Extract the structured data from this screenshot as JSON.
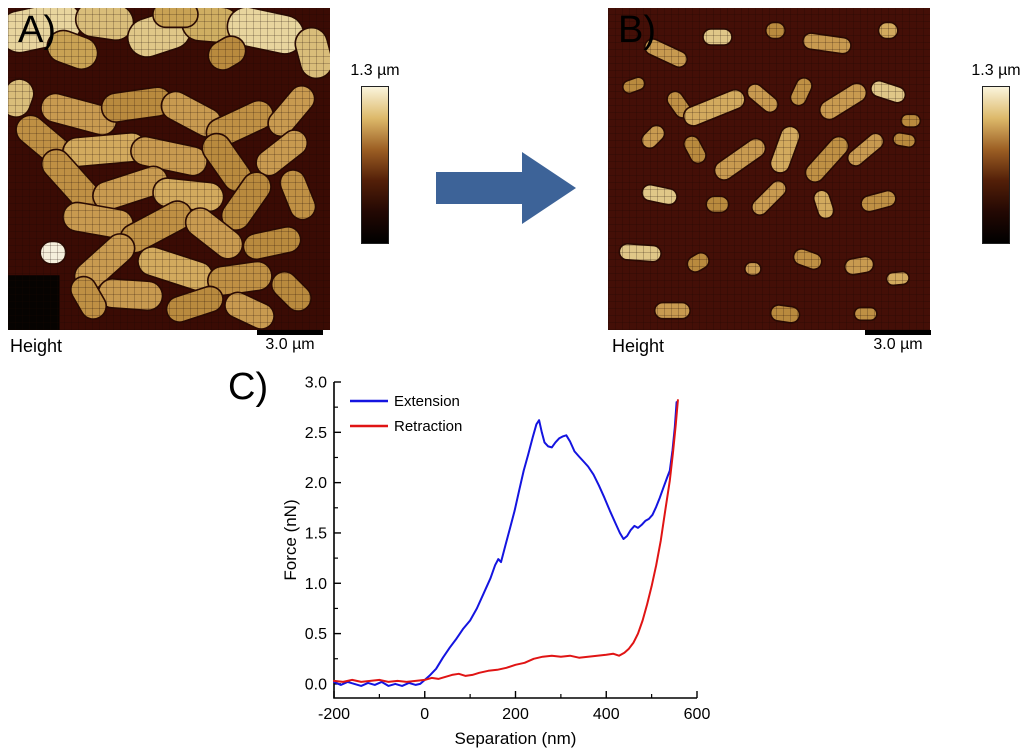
{
  "panels": {
    "a": {
      "label": "A)",
      "channel": "Height",
      "scalebar": "3.0 µm",
      "colorbar_label": "1.3 µm"
    },
    "b": {
      "label": "B)",
      "channel": "Height",
      "scalebar": "3.0 µm",
      "colorbar_label": "1.3 µm"
    },
    "c": {
      "label": "C)"
    }
  },
  "colors": {
    "arrow": "#3d6398",
    "colorbar_stops": [
      "#faf4dc",
      "#ddb96a",
      "#9c5f24",
      "#531f08",
      "#230803",
      "#000000"
    ]
  },
  "afm_a": {
    "background": "#3a0b04",
    "patches": [
      [
        0,
        83,
        16,
        17,
        "#060301"
      ]
    ],
    "cells": [
      [
        10,
        6,
        26,
        13,
        -12,
        "#e8d59e"
      ],
      [
        30,
        4,
        18,
        11,
        8,
        "#d9bd7a"
      ],
      [
        47,
        8,
        20,
        12,
        -18,
        "#e0c788"
      ],
      [
        63,
        5,
        18,
        11,
        5,
        "#cfae62"
      ],
      [
        80,
        7,
        24,
        12,
        12,
        "#e8d59e"
      ],
      [
        95,
        14,
        16,
        10,
        75,
        "#d9bd7a"
      ],
      [
        20,
        13,
        16,
        10,
        20,
        "#c9a254"
      ],
      [
        52,
        2,
        14,
        8,
        0,
        "#c9a254"
      ],
      [
        68,
        14,
        12,
        9,
        -30,
        "#b98a3e"
      ],
      [
        3,
        28,
        12,
        9,
        -70,
        "#d9bd7a"
      ],
      [
        22,
        33,
        24,
        9,
        15,
        "#c89a50"
      ],
      [
        40,
        30,
        22,
        9,
        -8,
        "#b98a3e"
      ],
      [
        57,
        33,
        20,
        9,
        28,
        "#c89a50"
      ],
      [
        72,
        36,
        22,
        9,
        -25,
        "#bf9044"
      ],
      [
        88,
        32,
        18,
        8,
        -50,
        "#c89a50"
      ],
      [
        12,
        42,
        22,
        9,
        40,
        "#bf9044"
      ],
      [
        30,
        44,
        26,
        9,
        -5,
        "#d2aa5e"
      ],
      [
        50,
        46,
        24,
        9,
        12,
        "#c89a50"
      ],
      [
        68,
        48,
        20,
        9,
        55,
        "#b98a3e"
      ],
      [
        85,
        45,
        18,
        8,
        -38,
        "#c89a50"
      ],
      [
        20,
        54,
        24,
        9,
        48,
        "#bf9044"
      ],
      [
        38,
        56,
        24,
        9,
        -18,
        "#c89a50"
      ],
      [
        56,
        58,
        22,
        9,
        6,
        "#d2aa5e"
      ],
      [
        74,
        60,
        20,
        9,
        -55,
        "#b98a3e"
      ],
      [
        90,
        58,
        16,
        8,
        68,
        "#bf9044"
      ],
      [
        28,
        66,
        22,
        9,
        10,
        "#c89a50"
      ],
      [
        46,
        68,
        24,
        9,
        -28,
        "#bf9044"
      ],
      [
        64,
        70,
        20,
        9,
        38,
        "#c89a50"
      ],
      [
        82,
        73,
        18,
        8,
        -12,
        "#b98a3e"
      ],
      [
        14,
        76,
        8,
        7,
        0,
        "#f5efdc"
      ],
      [
        30,
        79,
        22,
        9,
        -42,
        "#c89a50"
      ],
      [
        52,
        81,
        24,
        9,
        18,
        "#d2aa5e"
      ],
      [
        72,
        84,
        20,
        9,
        -8,
        "#bf9044"
      ],
      [
        88,
        88,
        14,
        8,
        45,
        "#b98a3e"
      ],
      [
        38,
        89,
        20,
        9,
        4,
        "#c89a50"
      ],
      [
        58,
        92,
        18,
        8,
        -18,
        "#b98a3e"
      ],
      [
        75,
        94,
        16,
        8,
        25,
        "#c89a50"
      ],
      [
        25,
        90,
        14,
        8,
        60,
        "#bf9044"
      ]
    ]
  },
  "afm_b": {
    "background": "#440f07",
    "patches": [],
    "cells": [
      [
        18,
        14,
        14,
        5,
        25,
        "#c89a50"
      ],
      [
        34,
        9,
        9,
        5,
        0,
        "#e0c788"
      ],
      [
        52,
        7,
        6,
        5,
        0,
        "#b98a3e"
      ],
      [
        68,
        11,
        15,
        5,
        8,
        "#c89a50"
      ],
      [
        87,
        7,
        6,
        5,
        0,
        "#d2aa5e"
      ],
      [
        8,
        24,
        7,
        4,
        -20,
        "#b98a3e"
      ],
      [
        22,
        30,
        9,
        5,
        55,
        "#bf9044"
      ],
      [
        33,
        31,
        20,
        6,
        -22,
        "#d2aa5e"
      ],
      [
        48,
        28,
        11,
        5,
        40,
        "#c89a50"
      ],
      [
        60,
        26,
        9,
        5,
        -65,
        "#bf9044"
      ],
      [
        73,
        29,
        16,
        6,
        -32,
        "#c89a50"
      ],
      [
        87,
        26,
        11,
        5,
        18,
        "#e0c788"
      ],
      [
        94,
        35,
        6,
        4,
        0,
        "#b98a3e"
      ],
      [
        14,
        40,
        8,
        5,
        -45,
        "#c89a50"
      ],
      [
        27,
        44,
        9,
        5,
        62,
        "#b98a3e"
      ],
      [
        41,
        47,
        18,
        6,
        -35,
        "#c89a50"
      ],
      [
        55,
        44,
        15,
        6,
        -70,
        "#d2aa5e"
      ],
      [
        68,
        47,
        17,
        6,
        -48,
        "#bf9044"
      ],
      [
        80,
        44,
        13,
        5,
        -40,
        "#c89a50"
      ],
      [
        92,
        41,
        7,
        4,
        10,
        "#b98a3e"
      ],
      [
        16,
        58,
        11,
        5,
        12,
        "#e0c788"
      ],
      [
        34,
        61,
        7,
        5,
        0,
        "#b98a3e"
      ],
      [
        50,
        59,
        13,
        5,
        -45,
        "#c89a50"
      ],
      [
        67,
        61,
        9,
        5,
        72,
        "#d2aa5e"
      ],
      [
        84,
        60,
        11,
        5,
        -15,
        "#bf9044"
      ],
      [
        10,
        76,
        13,
        5,
        4,
        "#e0c788"
      ],
      [
        28,
        79,
        7,
        5,
        -30,
        "#b98a3e"
      ],
      [
        45,
        81,
        5,
        4,
        0,
        "#c89a50"
      ],
      [
        62,
        78,
        9,
        5,
        20,
        "#bf9044"
      ],
      [
        78,
        80,
        9,
        5,
        -10,
        "#c89a50"
      ],
      [
        90,
        84,
        7,
        4,
        -5,
        "#d2aa5e"
      ],
      [
        20,
        94,
        11,
        5,
        0,
        "#c89a50"
      ],
      [
        55,
        95,
        9,
        5,
        8,
        "#b98a3e"
      ],
      [
        80,
        95,
        7,
        4,
        0,
        "#bf9044"
      ]
    ]
  },
  "chart_data": {
    "type": "line",
    "title": "",
    "xlabel": "Separation (nm)",
    "ylabel": "Force (nN)",
    "xlim": [
      -200,
      600
    ],
    "ylim": [
      -0.14,
      3.0
    ],
    "xticks_major": [
      -200,
      0,
      200,
      400,
      600
    ],
    "xtick_labels": [
      "-200",
      "0",
      "200",
      "400",
      "600"
    ],
    "xticks_minor": [
      -100,
      100,
      300,
      500
    ],
    "yticks_major": [
      0.0,
      0.5,
      1.0,
      1.5,
      2.0,
      2.5,
      3.0
    ],
    "ytick_labels": [
      "0.0",
      "0.5",
      "1.0",
      "1.5",
      "2.0",
      "2.5",
      "3.0"
    ],
    "yticks_minor": [
      0.25,
      0.75,
      1.25,
      1.75,
      2.25,
      2.75
    ],
    "grid": false,
    "legend_position": "top-left",
    "series": [
      {
        "name": "Extension",
        "color": "#1414e0",
        "points": [
          [
            -200,
            0.02
          ],
          [
            -185,
            -0.01
          ],
          [
            -170,
            0.02
          ],
          [
            -155,
            0.0
          ],
          [
            -140,
            -0.02
          ],
          [
            -125,
            0.01
          ],
          [
            -110,
            -0.01
          ],
          [
            -95,
            0.02
          ],
          [
            -80,
            -0.02
          ],
          [
            -65,
            0.0
          ],
          [
            -50,
            -0.02
          ],
          [
            -35,
            0.01
          ],
          [
            -20,
            -0.01
          ],
          [
            -10,
            0.0
          ],
          [
            0,
            0.04
          ],
          [
            10,
            0.08
          ],
          [
            25,
            0.15
          ],
          [
            40,
            0.26
          ],
          [
            55,
            0.36
          ],
          [
            70,
            0.45
          ],
          [
            85,
            0.55
          ],
          [
            100,
            0.63
          ],
          [
            115,
            0.75
          ],
          [
            130,
            0.9
          ],
          [
            145,
            1.05
          ],
          [
            155,
            1.18
          ],
          [
            162,
            1.24
          ],
          [
            168,
            1.21
          ],
          [
            178,
            1.38
          ],
          [
            188,
            1.55
          ],
          [
            198,
            1.72
          ],
          [
            208,
            1.92
          ],
          [
            218,
            2.12
          ],
          [
            228,
            2.28
          ],
          [
            238,
            2.45
          ],
          [
            246,
            2.58
          ],
          [
            252,
            2.62
          ],
          [
            258,
            2.5
          ],
          [
            264,
            2.4
          ],
          [
            272,
            2.36
          ],
          [
            280,
            2.35
          ],
          [
            288,
            2.4
          ],
          [
            296,
            2.44
          ],
          [
            305,
            2.46
          ],
          [
            312,
            2.47
          ],
          [
            320,
            2.41
          ],
          [
            330,
            2.31
          ],
          [
            340,
            2.26
          ],
          [
            350,
            2.21
          ],
          [
            360,
            2.16
          ],
          [
            372,
            2.08
          ],
          [
            384,
            1.97
          ],
          [
            396,
            1.85
          ],
          [
            408,
            1.72
          ],
          [
            420,
            1.6
          ],
          [
            430,
            1.5
          ],
          [
            438,
            1.44
          ],
          [
            446,
            1.47
          ],
          [
            454,
            1.53
          ],
          [
            462,
            1.57
          ],
          [
            470,
            1.55
          ],
          [
            478,
            1.58
          ],
          [
            486,
            1.62
          ],
          [
            494,
            1.64
          ],
          [
            502,
            1.68
          ],
          [
            510,
            1.76
          ],
          [
            518,
            1.85
          ],
          [
            526,
            1.95
          ],
          [
            534,
            2.05
          ],
          [
            540,
            2.12
          ],
          [
            546,
            2.32
          ],
          [
            551,
            2.55
          ],
          [
            555,
            2.8
          ]
        ]
      },
      {
        "name": "Retraction",
        "color": "#e01414",
        "points": [
          [
            -200,
            0.03
          ],
          [
            -180,
            0.02
          ],
          [
            -160,
            0.04
          ],
          [
            -140,
            0.02
          ],
          [
            -120,
            0.03
          ],
          [
            -100,
            0.04
          ],
          [
            -80,
            0.02
          ],
          [
            -60,
            0.03
          ],
          [
            -40,
            0.02
          ],
          [
            -20,
            0.03
          ],
          [
            0,
            0.04
          ],
          [
            15,
            0.06
          ],
          [
            30,
            0.05
          ],
          [
            45,
            0.07
          ],
          [
            60,
            0.09
          ],
          [
            75,
            0.1
          ],
          [
            90,
            0.08
          ],
          [
            105,
            0.09
          ],
          [
            120,
            0.11
          ],
          [
            140,
            0.13
          ],
          [
            160,
            0.14
          ],
          [
            180,
            0.16
          ],
          [
            200,
            0.19
          ],
          [
            220,
            0.21
          ],
          [
            240,
            0.25
          ],
          [
            260,
            0.27
          ],
          [
            280,
            0.28
          ],
          [
            300,
            0.27
          ],
          [
            320,
            0.28
          ],
          [
            340,
            0.26
          ],
          [
            360,
            0.27
          ],
          [
            380,
            0.28
          ],
          [
            400,
            0.29
          ],
          [
            415,
            0.3
          ],
          [
            428,
            0.28
          ],
          [
            440,
            0.31
          ],
          [
            450,
            0.35
          ],
          [
            460,
            0.41
          ],
          [
            470,
            0.5
          ],
          [
            480,
            0.63
          ],
          [
            490,
            0.79
          ],
          [
            500,
            0.97
          ],
          [
            510,
            1.18
          ],
          [
            520,
            1.42
          ],
          [
            530,
            1.72
          ],
          [
            540,
            2.02
          ],
          [
            547,
            2.3
          ],
          [
            553,
            2.57
          ],
          [
            558,
            2.82
          ]
        ]
      }
    ]
  }
}
